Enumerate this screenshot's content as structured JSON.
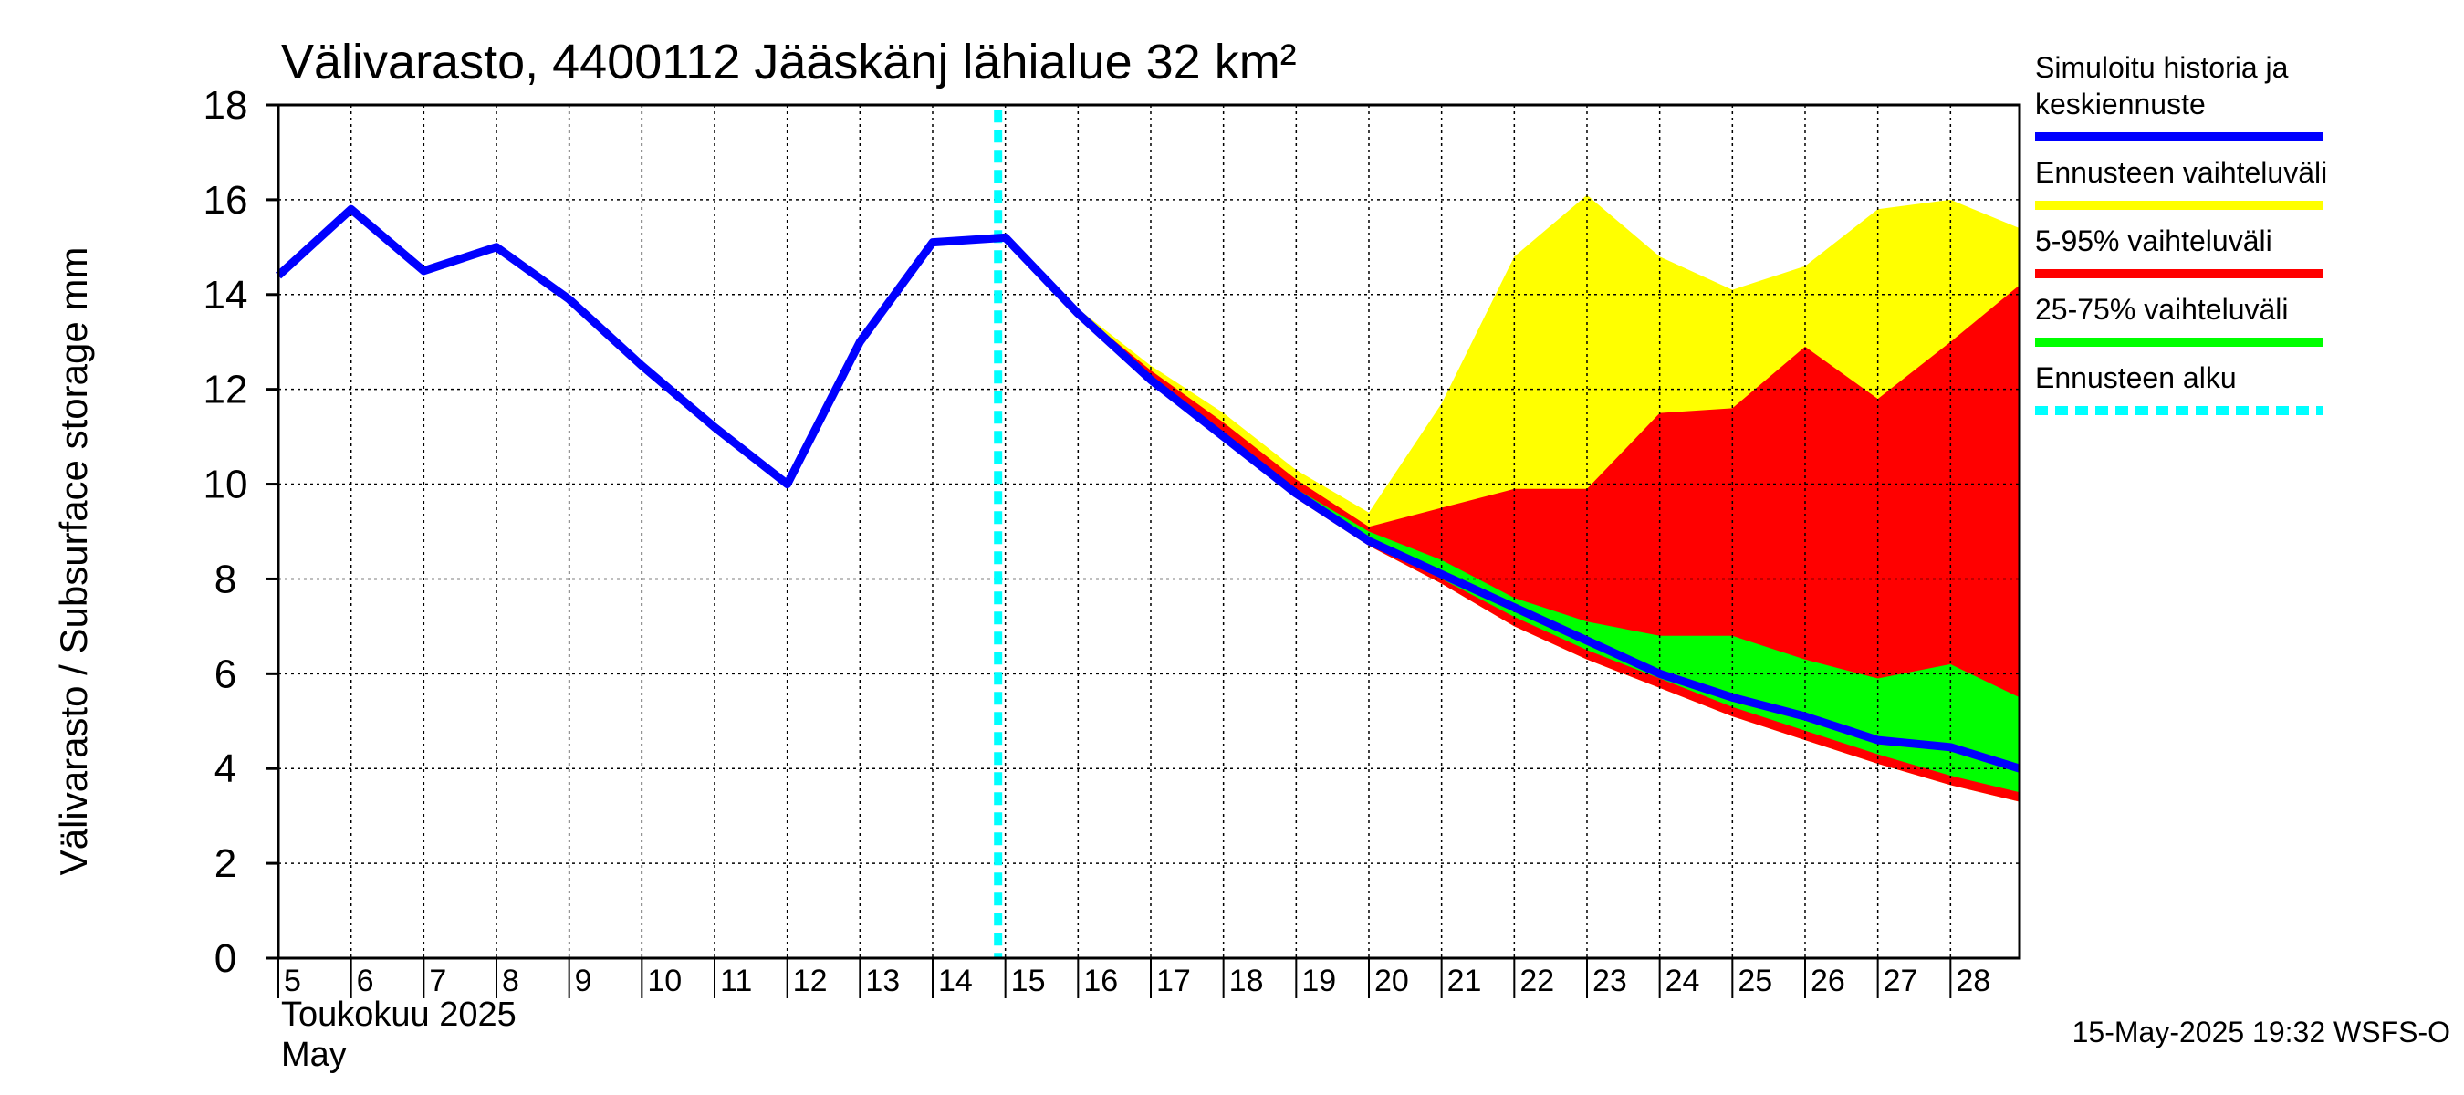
{
  "chart_data": {
    "type": "area",
    "title": "Välivarasto, 4400112 Jääskänj lähialue 32 km²",
    "ylabel": "Välivarasto / Subsurface storage  mm",
    "ylim": [
      0,
      18
    ],
    "yticks": [
      0,
      2,
      4,
      6,
      8,
      10,
      12,
      14,
      16,
      18
    ],
    "x_start_day": 5,
    "x_end_day": 28.95,
    "xtick_days": [
      5,
      6,
      7,
      8,
      9,
      10,
      11,
      12,
      13,
      14,
      15,
      16,
      17,
      18,
      19,
      20,
      21,
      22,
      23,
      24,
      25,
      26,
      27,
      28
    ],
    "xtick_labels": [
      "5",
      "6",
      "7",
      "8",
      "9",
      "10",
      "11",
      "12",
      "13",
      "14",
      "15",
      "16",
      "17",
      "18",
      "19",
      "20",
      "21",
      "22",
      "23",
      "24",
      "25",
      "26",
      "27",
      "28"
    ],
    "month_label_fi": "Toukokuu  2025",
    "month_label_en": "May",
    "grid": true,
    "forecast_start_day": 14.9,
    "series": [
      {
        "name": "Simuloitu historia ja keskiennuste",
        "kind": "line",
        "color": "#0000ff",
        "x": [
          5,
          6,
          7,
          8,
          9,
          10,
          11,
          12,
          13,
          14,
          15,
          16,
          17,
          18,
          19,
          20,
          21,
          22,
          23,
          24,
          25,
          26,
          27,
          28,
          28.95
        ],
        "y": [
          14.4,
          15.8,
          14.5,
          15.0,
          13.9,
          12.5,
          11.2,
          10.0,
          13.0,
          15.1,
          15.2,
          13.6,
          12.2,
          11.0,
          9.8,
          8.8,
          8.1,
          7.4,
          6.7,
          6.0,
          5.5,
          5.1,
          4.6,
          4.45,
          4.0
        ]
      },
      {
        "name": "Ennusteen vaihteluväli",
        "kind": "band",
        "color": "#ffff00",
        "x": [
          15,
          16,
          17,
          18,
          19,
          20,
          21,
          22,
          23,
          24,
          25,
          26,
          27,
          28,
          28.95
        ],
        "upper": [
          15.2,
          13.7,
          12.5,
          11.5,
          10.3,
          9.4,
          11.7,
          14.8,
          16.1,
          14.8,
          14.1,
          14.6,
          15.8,
          16.0,
          15.4
        ],
        "lower": [
          15.2,
          13.6,
          12.1,
          10.9,
          9.7,
          8.7,
          7.9,
          7.0,
          6.3,
          5.7,
          5.1,
          4.6,
          4.1,
          3.65,
          3.3
        ]
      },
      {
        "name": "5-95% vaihteluväli",
        "kind": "band",
        "color": "#ff0000",
        "x": [
          15,
          16,
          17,
          18,
          19,
          20,
          21,
          22,
          23,
          24,
          25,
          26,
          27,
          28,
          28.95
        ],
        "upper": [
          15.2,
          13.65,
          12.4,
          11.3,
          10.1,
          9.1,
          9.5,
          9.9,
          9.9,
          11.5,
          11.6,
          12.9,
          11.8,
          13.0,
          14.2
        ],
        "lower": [
          15.2,
          13.6,
          12.1,
          10.9,
          9.7,
          8.7,
          7.9,
          7.0,
          6.3,
          5.7,
          5.1,
          4.6,
          4.1,
          3.65,
          3.3
        ]
      },
      {
        "name": "25-75% vaihteluväli",
        "kind": "band",
        "color": "#00ff00",
        "x": [
          15,
          16,
          17,
          18,
          19,
          20,
          21,
          22,
          23,
          24,
          25,
          26,
          27,
          28,
          28.95
        ],
        "upper": [
          15.2,
          13.6,
          12.2,
          11.1,
          9.9,
          9.0,
          8.4,
          7.6,
          7.1,
          6.8,
          6.8,
          6.3,
          5.9,
          6.2,
          5.5
        ],
        "lower": [
          15.2,
          13.6,
          12.2,
          11.0,
          9.8,
          8.8,
          8.0,
          7.2,
          6.5,
          5.9,
          5.3,
          4.8,
          4.3,
          3.85,
          3.5
        ]
      },
      {
        "name": "Ennusteen alku",
        "kind": "vline",
        "color": "#00ffff"
      }
    ],
    "legend": {
      "placement": "right",
      "items": [
        {
          "lines": [
            "Simuloitu historia ja",
            "keskiennuste"
          ],
          "color": "#0000ff",
          "style": "solid"
        },
        {
          "lines": [
            "Ennusteen vaihteluväli"
          ],
          "color": "#ffff00",
          "style": "solid"
        },
        {
          "lines": [
            "5-95% vaihteluväli"
          ],
          "color": "#ff0000",
          "style": "solid"
        },
        {
          "lines": [
            "25-75% vaihteluväli"
          ],
          "color": "#00ff00",
          "style": "solid"
        },
        {
          "lines": [
            "Ennusteen alku"
          ],
          "color": "#00ffff",
          "style": "dashed"
        }
      ]
    }
  },
  "footer": "15-May-2025 19:32 WSFS-O"
}
